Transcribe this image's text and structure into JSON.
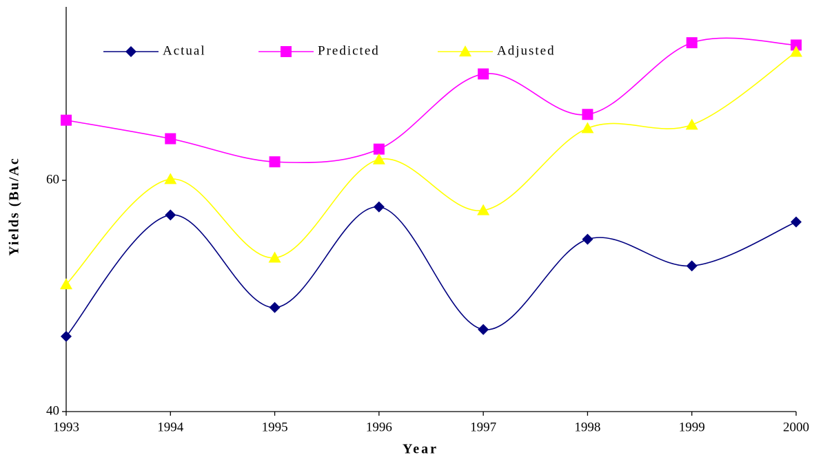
{
  "chart_data": {
    "type": "line",
    "x_label": "Year",
    "y_label": "Yields (Bu/Ac",
    "categories": [
      "1993",
      "1994",
      "1995",
      "1996",
      "1997",
      "1998",
      "1999",
      "2000"
    ],
    "series": [
      {
        "name": "Actual",
        "color": "#000080",
        "marker": "diamond",
        "values": [
          46.5,
          57.0,
          49.0,
          57.7,
          47.1,
          54.9,
          52.6,
          56.4
        ]
      },
      {
        "name": "Predicted",
        "color": "#ff00ff",
        "marker": "square",
        "values": [
          65.2,
          63.6,
          61.6,
          62.7,
          69.2,
          65.7,
          71.9,
          71.7
        ]
      },
      {
        "name": "Adjusted",
        "color": "#ffff00",
        "marker": "triangle",
        "values": [
          51.0,
          60.1,
          53.3,
          61.8,
          57.4,
          64.5,
          64.8,
          71.1
        ]
      }
    ],
    "ylim": [
      40,
      75
    ],
    "yticks": [
      40,
      60
    ],
    "grid": false,
    "smooth": true,
    "legend": "top"
  }
}
